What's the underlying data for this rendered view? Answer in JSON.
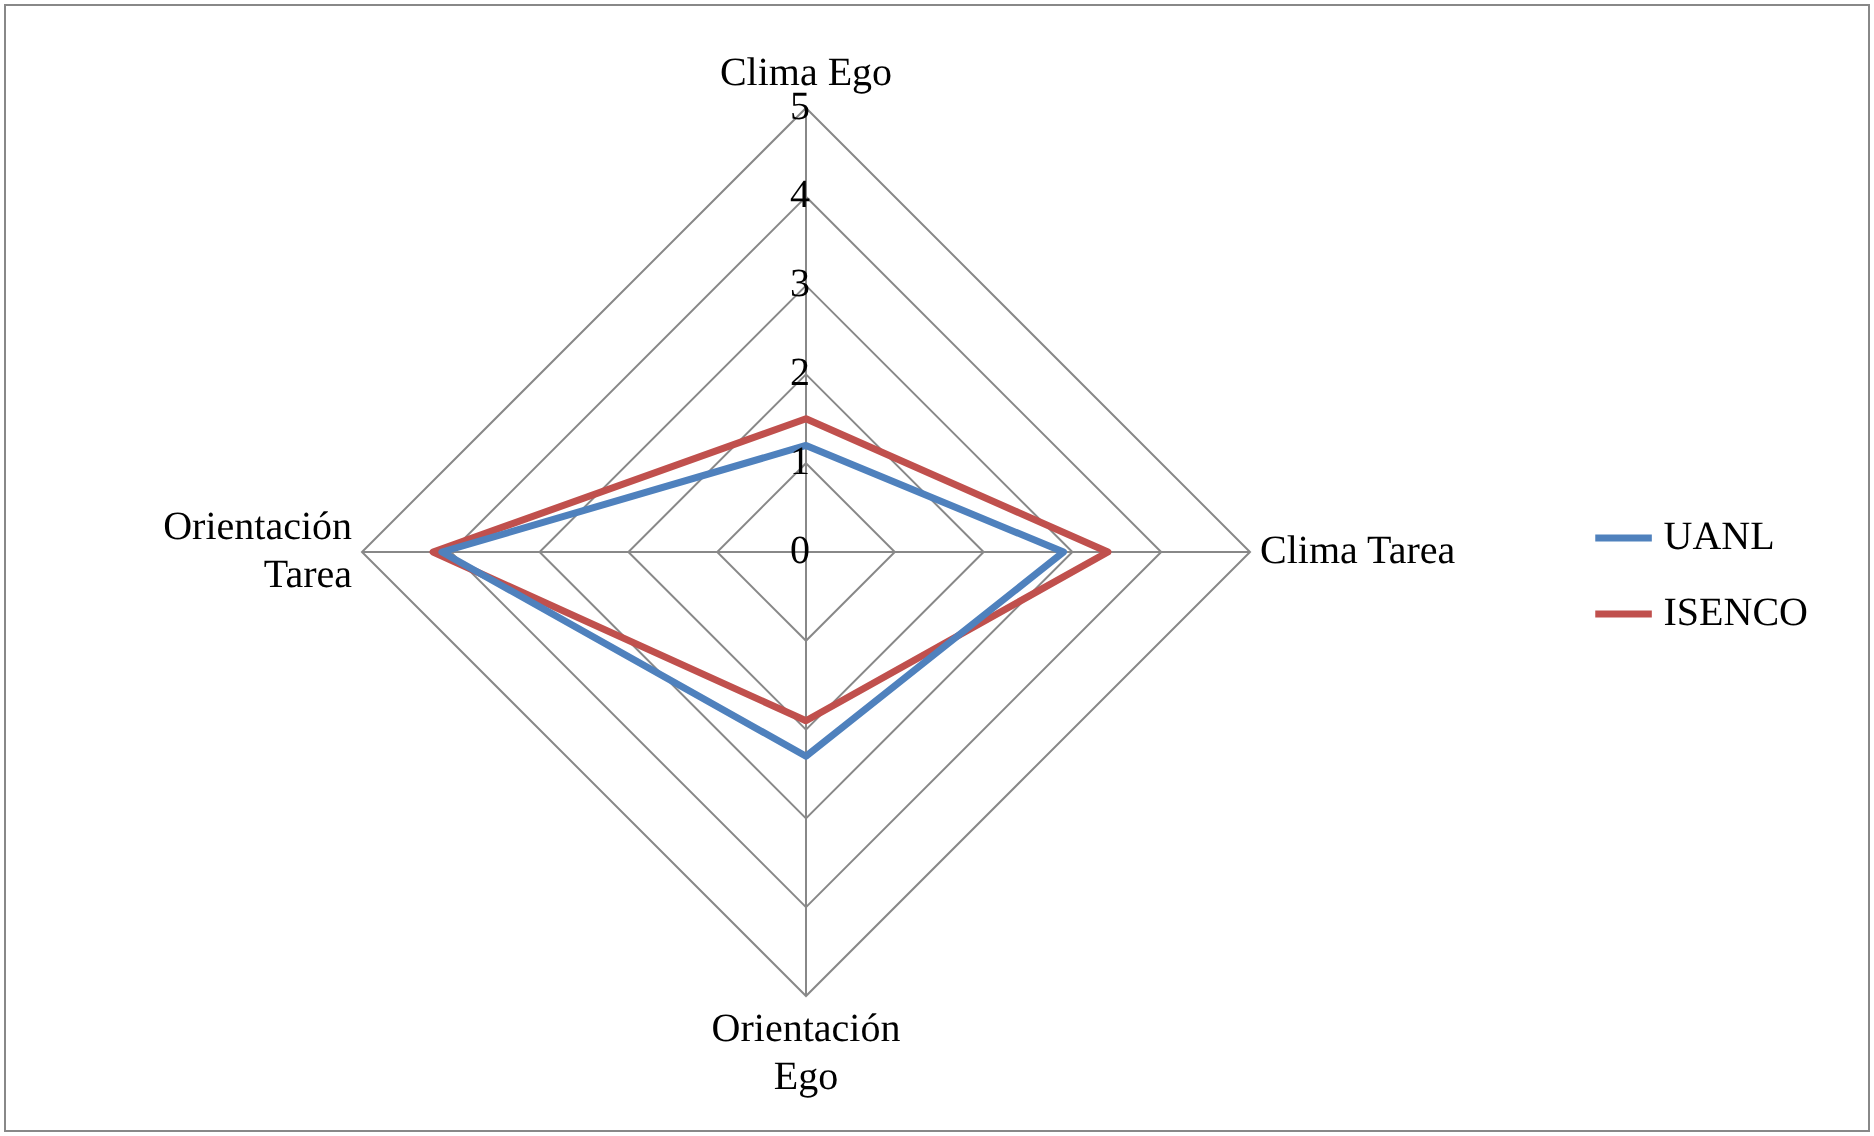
{
  "chart_data": {
    "type": "radar",
    "categories": [
      "Clima Ego",
      "Clima Tarea",
      "Orientación\nEgo",
      "Orientación\nTarea"
    ],
    "series": [
      {
        "name": "UANL",
        "color": "#4f81bd",
        "values": [
          1.2,
          2.9,
          2.3,
          4.1
        ]
      },
      {
        "name": "ISENCO",
        "color": "#c0504d",
        "values": [
          1.5,
          3.4,
          1.9,
          4.2
        ]
      }
    ],
    "ylim": [
      0,
      5
    ],
    "yticks": [
      0,
      1,
      2,
      3,
      4,
      5
    ],
    "grid": true,
    "legend": "right",
    "marker": "none"
  }
}
